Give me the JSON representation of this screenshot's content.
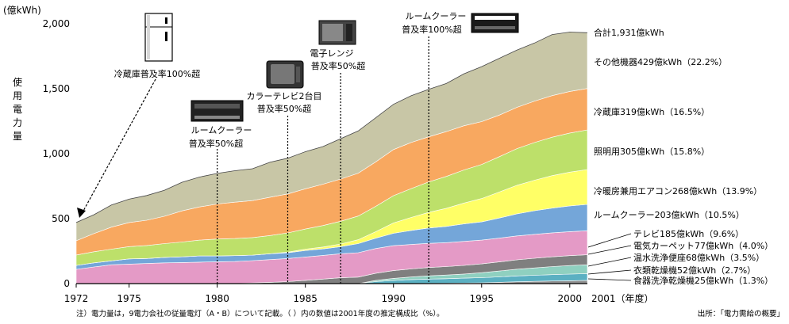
{
  "chart_data": {
    "type": "area",
    "stacked": true,
    "yunit": "(億kWh)",
    "ylabel": "使用電力量",
    "ylim": [
      0,
      2000
    ],
    "yticks": [
      "0",
      "500",
      "1,000",
      "1,500",
      "2,000"
    ],
    "ytick_values": [
      0,
      500,
      1000,
      1500,
      2000
    ],
    "xlim": [
      1972,
      2001
    ],
    "xticks": [
      "1972",
      "1975",
      "1980",
      "1985",
      "1990",
      "1995",
      "2000"
    ],
    "xtick_values": [
      1972,
      1975,
      1980,
      1985,
      1990,
      1995,
      2000
    ],
    "x_end_label": "2001（年度）",
    "x": [
      1972,
      1973,
      1974,
      1975,
      1976,
      1977,
      1978,
      1979,
      1980,
      1981,
      1982,
      1983,
      1984,
      1985,
      1986,
      1987,
      1988,
      1989,
      1990,
      1991,
      1992,
      1993,
      1994,
      1995,
      1996,
      1997,
      1998,
      1999,
      2000,
      2001
    ],
    "series": [
      {
        "name": "食器洗浄乾燥機25億kWh（1.3%）",
        "color": "#8f8f8f",
        "values": [
          0,
          0,
          0,
          0,
          0,
          0,
          0,
          0,
          0,
          0,
          0,
          0,
          0,
          0,
          0,
          0,
          0,
          0,
          0,
          1,
          2,
          3,
          4,
          6,
          10,
          14,
          17,
          20,
          22,
          25
        ]
      },
      {
        "name": "衣類乾燥機52億kWh（2.7%）",
        "color": "#5bb0c2",
        "values": [
          0,
          0,
          0,
          0,
          0,
          0,
          0,
          0,
          0,
          0,
          0,
          0,
          0,
          0,
          0,
          0,
          0,
          15,
          25,
          30,
          33,
          35,
          38,
          40,
          42,
          45,
          47,
          49,
          51,
          52
        ]
      },
      {
        "name": "温水洗浄便座68億kWh（3.5%）",
        "color": "#8fd0c0",
        "values": [
          0,
          0,
          0,
          0,
          0,
          0,
          0,
          0,
          0,
          0,
          0,
          0,
          0,
          0,
          0,
          0,
          0,
          10,
          15,
          20,
          25,
          28,
          32,
          38,
          45,
          52,
          57,
          62,
          66,
          68
        ]
      },
      {
        "name": "電気カーペット77億kWh（4.0%）",
        "color": "#7f7f7f",
        "values": [
          0,
          0,
          0,
          0,
          0,
          0,
          0,
          0,
          0,
          0,
          5,
          10,
          15,
          25,
          35,
          45,
          50,
          55,
          60,
          62,
          64,
          65,
          66,
          68,
          70,
          72,
          74,
          75,
          76,
          77
        ]
      },
      {
        "name": "テレビ185億kWh（9.6%）",
        "color": "#e49ac6",
        "values": [
          110,
          128,
          145,
          150,
          155,
          160,
          162,
          165,
          168,
          170,
          172,
          175,
          178,
          180,
          182,
          185,
          188,
          190,
          192,
          188,
          186,
          184,
          185,
          183,
          183,
          184,
          184,
          185,
          185,
          185
        ]
      },
      {
        "name": "ルームクーラー203億kWh（10.5%）",
        "color": "#74a6d9",
        "values": [
          30,
          32,
          30,
          40,
          38,
          42,
          44,
          48,
          45,
          45,
          42,
          45,
          44,
          50,
          50,
          55,
          70,
          80,
          95,
          108,
          118,
          125,
          135,
          140,
          155,
          170,
          182,
          190,
          198,
          203
        ]
      },
      {
        "name": "冷暖房兼用エアコン268億kWh（13.9%）",
        "color": "#ffff66",
        "values": [
          0,
          0,
          0,
          0,
          0,
          0,
          0,
          0,
          0,
          0,
          0,
          0,
          5,
          10,
          15,
          20,
          30,
          50,
          80,
          100,
          120,
          140,
          160,
          180,
          200,
          220,
          235,
          250,
          260,
          268
        ]
      },
      {
        "name": "照明用305億kWh（15.8%）",
        "color": "#bde06a",
        "values": [
          80,
          85,
          90,
          95,
          100,
          106,
          114,
          122,
          130,
          132,
          135,
          140,
          148,
          155,
          165,
          175,
          182,
          195,
          210,
          222,
          235,
          245,
          255,
          262,
          272,
          282,
          290,
          296,
          301,
          305
        ]
      },
      {
        "name": "冷蔵庫319億kWh（16.5%）",
        "color": "#f8a860",
        "values": [
          110,
          140,
          170,
          185,
          195,
          210,
          240,
          255,
          270,
          280,
          285,
          295,
          300,
          310,
          318,
          325,
          330,
          342,
          355,
          355,
          347,
          345,
          340,
          330,
          320,
          318,
          319,
          320,
          320,
          319
        ]
      },
      {
        "name": "その他機器429億kWh（22.2%）",
        "color": "#c8c6a6",
        "values": [
          140,
          145,
          170,
          180,
          190,
          200,
          220,
          230,
          235,
          242,
          245,
          270,
          275,
          285,
          290,
          310,
          325,
          340,
          348,
          360,
          365,
          370,
          400,
          423,
          437,
          440,
          447,
          470,
          457,
          429
        ]
      }
    ],
    "total_label": "合計1,931億kWh",
    "annotations": [
      {
        "text": "冷蔵庫普及率100%超",
        "year": 1972
      },
      {
        "text": "ルームクーラー",
        "text2": "普及率50%超",
        "year": 1980
      },
      {
        "text": "カラーテレビ2台目",
        "text2": "普及率50%超",
        "year": 1984
      },
      {
        "text": "電子レンジ",
        "text2": "普及率50%超",
        "year": 1987
      },
      {
        "text": "ルームクーラー",
        "text2": "普及率100%超",
        "year": 1992
      }
    ],
    "footnote": "注）電力量は，9電力会社の従量電灯（A・B）について記載。（ ）内の数値は2001年度の推定構成比（%）。",
    "source": "出所：「電力需給の概要」"
  }
}
